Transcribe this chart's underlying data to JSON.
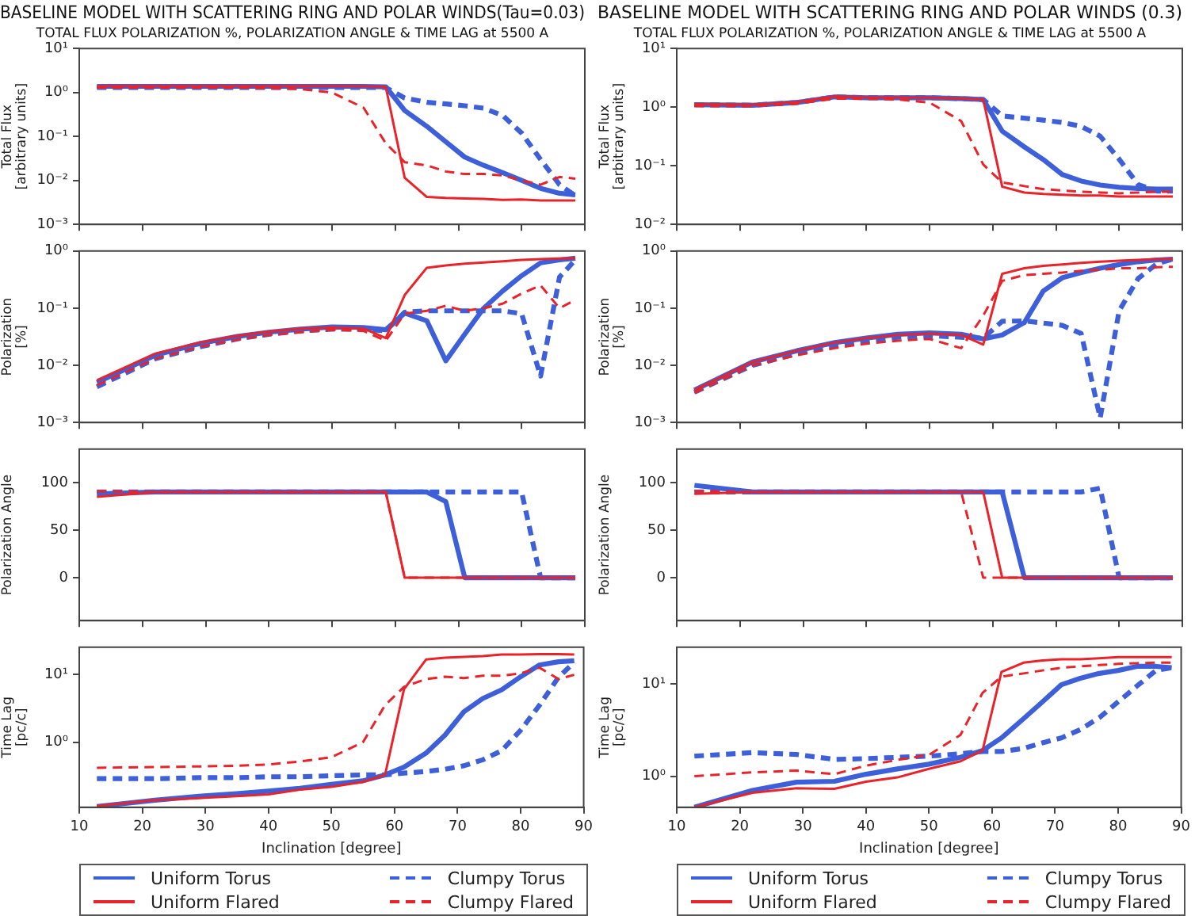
{
  "chart_data": [
    {
      "type": "line",
      "title": "BASELINE MODEL WITH SCATTERING RING AND POLAR WINDS(Tau=0.03)",
      "subtitle": "TOTAL FLUX POLARIZATION %, POLARIZATION ANGLE & TIME LAG at 5500 A",
      "ylabel": "Total Flux\n[arbitrary units]",
      "log": "y",
      "tick_labels": "y",
      "x": [
        12.8,
        22,
        29,
        35,
        40,
        45,
        50,
        55,
        58.5,
        61.5,
        65,
        68,
        71,
        74,
        77,
        80,
        83,
        86,
        88.5
      ],
      "xlim": [
        10,
        90
      ],
      "xticks": [
        10,
        20,
        30,
        40,
        50,
        60,
        70,
        80,
        90
      ],
      "ylim": [
        0.001,
        10
      ],
      "yticks": [
        {
          "value": 0.001,
          "label": "10⁻³"
        },
        {
          "value": 0.01,
          "label": "10⁻²"
        },
        {
          "value": 0.1,
          "label": "10⁻¹"
        },
        {
          "value": 1,
          "label": "10⁰"
        },
        {
          "value": 10,
          "label": "10¹"
        }
      ],
      "series": [
        {
          "color": "#3d5fd9",
          "line_style": "solid",
          "values": [
            1.38,
            1.38,
            1.38,
            1.38,
            1.38,
            1.38,
            1.38,
            1.38,
            1.35,
            0.39,
            0.17,
            0.076,
            0.034,
            0.022,
            0.015,
            0.01,
            0.0066,
            0.0051,
            0.0047
          ]
        },
        {
          "color": "#e8242a",
          "line_style": "solid",
          "values": [
            1.4,
            1.4,
            1.4,
            1.4,
            1.4,
            1.4,
            1.4,
            1.38,
            1.35,
            0.0115,
            0.0042,
            0.004,
            0.0039,
            0.0038,
            0.0036,
            0.0037,
            0.0035,
            0.0035,
            0.0035
          ]
        },
        {
          "color": "#3d5fd9",
          "line_style": "dashed",
          "values": [
            1.3,
            1.3,
            1.3,
            1.3,
            1.3,
            1.3,
            1.3,
            1.3,
            1.3,
            0.75,
            0.6,
            0.55,
            0.5,
            0.44,
            0.3,
            0.12,
            0.03,
            0.008,
            0.0045
          ]
        },
        {
          "color": "#e8242a",
          "line_style": "dashed",
          "values": [
            1.3,
            1.3,
            1.3,
            1.3,
            1.25,
            1.2,
            1.0,
            0.45,
            0.07,
            0.026,
            0.022,
            0.016,
            0.014,
            0.014,
            0.013,
            0.01,
            0.008,
            0.012,
            0.011
          ]
        }
      ]
    },
    {
      "type": "line",
      "ylabel": "Polarization\n[%]",
      "log": "y",
      "tick_labels": "y",
      "x": [
        12.8,
        22,
        29,
        35,
        40,
        45,
        50,
        55,
        58.5,
        61.5,
        65,
        68,
        71,
        74,
        77,
        80,
        83,
        86,
        88.5
      ],
      "xlim": [
        10,
        90
      ],
      "xticks": [
        10,
        20,
        30,
        40,
        50,
        60,
        70,
        80,
        90
      ],
      "ylim": [
        0.001,
        1
      ],
      "yticks": [
        {
          "value": 0.001,
          "label": "10⁻³"
        },
        {
          "value": 0.01,
          "label": "10⁻²"
        },
        {
          "value": 0.1,
          "label": "10⁻¹"
        },
        {
          "value": 1,
          "label": "10⁰"
        }
      ],
      "series": [
        {
          "color": "#3d5fd9",
          "line_style": "solid",
          "values": [
            0.005,
            0.015,
            0.024,
            0.032,
            0.038,
            0.043,
            0.047,
            0.046,
            0.042,
            0.082,
            0.06,
            0.012,
            0.035,
            0.1,
            0.2,
            0.37,
            0.62,
            0.7,
            0.75
          ]
        },
        {
          "color": "#e8242a",
          "line_style": "solid",
          "values": [
            0.0055,
            0.016,
            0.025,
            0.033,
            0.039,
            0.044,
            0.046,
            0.044,
            0.03,
            0.17,
            0.51,
            0.56,
            0.6,
            0.63,
            0.66,
            0.7,
            0.72,
            0.74,
            0.75
          ]
        },
        {
          "color": "#3d5fd9",
          "line_style": "dashed",
          "values": [
            0.0042,
            0.013,
            0.021,
            0.029,
            0.035,
            0.04,
            0.043,
            0.043,
            0.04,
            0.085,
            0.09,
            0.09,
            0.09,
            0.09,
            0.09,
            0.08,
            0.0065,
            0.35,
            0.7
          ]
        },
        {
          "color": "#e8242a",
          "line_style": "dashed",
          "values": [
            0.0045,
            0.013,
            0.021,
            0.028,
            0.034,
            0.038,
            0.042,
            0.04,
            0.027,
            0.08,
            0.09,
            0.11,
            0.09,
            0.1,
            0.12,
            0.18,
            0.25,
            0.1,
            0.14
          ]
        }
      ]
    },
    {
      "type": "line",
      "ylabel": "Polarization Angle",
      "tick_labels": "y",
      "x": [
        12.8,
        22,
        29,
        35,
        40,
        45,
        50,
        55,
        58.5,
        61.5,
        65,
        68,
        71,
        74,
        77,
        80,
        83,
        86,
        88.5
      ],
      "xlim": [
        10,
        90
      ],
      "xticks": [
        10,
        20,
        30,
        40,
        50,
        60,
        70,
        80,
        90
      ],
      "ylim": [
        -45,
        135
      ],
      "yticks": [
        0,
        50,
        100
      ],
      "series": [
        {
          "color": "#3d5fd9",
          "line_style": "solid",
          "values": [
            88,
            90,
            90,
            90,
            90,
            90,
            90,
            90,
            90,
            90,
            90,
            80,
            0,
            0,
            0,
            0,
            0,
            0,
            0
          ]
        },
        {
          "color": "#e8242a",
          "line_style": "solid",
          "values": [
            85,
            90,
            90,
            90,
            90,
            90,
            90,
            90,
            90,
            0,
            0,
            0,
            0,
            0,
            0,
            0,
            0,
            0,
            0
          ]
        },
        {
          "color": "#3d5fd9",
          "line_style": "dashed",
          "values": [
            90,
            90,
            90,
            90,
            90,
            90,
            90,
            90,
            90,
            90,
            90,
            90,
            90,
            90,
            90,
            90,
            0,
            0,
            0
          ]
        },
        {
          "color": "#e8242a",
          "line_style": "dashed",
          "values": [
            91,
            90,
            90,
            90,
            90,
            90,
            90,
            90,
            90,
            0,
            0,
            0,
            0,
            0,
            0,
            0,
            0,
            0,
            0
          ]
        }
      ]
    },
    {
      "type": "line",
      "ylabel": "Time Lag\n[pc/c]",
      "xlabel": "Inclination [degree]",
      "log": "y",
      "legend": "bottom",
      "x": [
        12.8,
        22,
        29,
        35,
        40,
        45,
        50,
        55,
        58.5,
        61.5,
        65,
        68,
        71,
        74,
        77,
        80,
        83,
        86,
        88.5
      ],
      "xlim": [
        10,
        90
      ],
      "xticks": [
        10,
        20,
        30,
        40,
        50,
        60,
        70,
        80,
        90
      ],
      "ylim": [
        0.11,
        25
      ],
      "yticks": [
        {
          "value": 1,
          "label": "10⁰"
        },
        {
          "value": 10,
          "label": "10¹"
        }
      ],
      "series": [
        {
          "name": "Uniform Torus",
          "color": "#3d5fd9",
          "line_style": "solid",
          "values": [
            0.113,
            0.14,
            0.16,
            0.175,
            0.19,
            0.21,
            0.24,
            0.27,
            0.33,
            0.43,
            0.69,
            1.27,
            2.8,
            4.4,
            5.9,
            9.2,
            13.7,
            15.3,
            15.8
          ]
        },
        {
          "name": "Uniform Flared",
          "color": "#e8242a",
          "line_style": "solid",
          "values": [
            0.115,
            0.14,
            0.15,
            0.16,
            0.17,
            0.2,
            0.22,
            0.26,
            0.33,
            6,
            16.5,
            17.5,
            18,
            18.5,
            19.5,
            19.5,
            19.8,
            19.8,
            19.5
          ]
        },
        {
          "name": "Clumpy Torus",
          "color": "#3d5fd9",
          "line_style": "dashed",
          "values": [
            0.29,
            0.29,
            0.3,
            0.3,
            0.31,
            0.31,
            0.32,
            0.33,
            0.33,
            0.35,
            0.37,
            0.4,
            0.45,
            0.55,
            0.75,
            1.5,
            3.5,
            9,
            15
          ]
        },
        {
          "name": "Clumpy Flared",
          "color": "#e8242a",
          "line_style": "dashed",
          "values": [
            0.42,
            0.43,
            0.44,
            0.45,
            0.47,
            0.52,
            0.6,
            1.0,
            3.5,
            6.5,
            8.5,
            9.2,
            8.8,
            9.5,
            9.5,
            10.3,
            12.5,
            8.5,
            9.8
          ]
        }
      ]
    },
    {
      "type": "line",
      "title": "BASELINE MODEL WITH SCATTERING RING AND POLAR WINDS (0.3)",
      "subtitle": "TOTAL FLUX POLARIZATION %, POLARIZATION ANGLE & TIME LAG at 5500 A",
      "ylabel": "Total Flux\n[arbitrary units]",
      "log": "y",
      "tick_labels": "y",
      "x": [
        12.8,
        22,
        29,
        35,
        40,
        45,
        50,
        55,
        58.5,
        61.5,
        65,
        68,
        71,
        74,
        77,
        80,
        83,
        86,
        88.5
      ],
      "xlim": [
        10,
        90
      ],
      "xticks": [
        10,
        20,
        30,
        40,
        50,
        60,
        70,
        80,
        90
      ],
      "ylim": [
        0.01,
        10
      ],
      "yticks": [
        {
          "value": 0.01,
          "label": "10⁻²"
        },
        {
          "value": 0.1,
          "label": "10⁻¹"
        },
        {
          "value": 1,
          "label": "10⁰"
        },
        {
          "value": 10,
          "label": "10¹"
        }
      ],
      "series": [
        {
          "color": "#3d5fd9",
          "line_style": "solid",
          "values": [
            1.1,
            1.08,
            1.2,
            1.5,
            1.45,
            1.45,
            1.45,
            1.4,
            1.35,
            0.39,
            0.21,
            0.128,
            0.071,
            0.055,
            0.047,
            0.043,
            0.041,
            0.04,
            0.04
          ]
        },
        {
          "color": "#e8242a",
          "line_style": "solid",
          "values": [
            1.12,
            1.1,
            1.22,
            1.52,
            1.47,
            1.46,
            1.45,
            1.4,
            1.35,
            0.044,
            0.035,
            0.033,
            0.032,
            0.031,
            0.031,
            0.03,
            0.03,
            0.03,
            0.03
          ]
        },
        {
          "color": "#3d5fd9",
          "line_style": "dashed",
          "values": [
            1.1,
            1.08,
            1.2,
            1.5,
            1.45,
            1.45,
            1.45,
            1.4,
            1.35,
            0.71,
            0.65,
            0.6,
            0.55,
            0.47,
            0.32,
            0.13,
            0.048,
            0.037,
            0.037
          ]
        },
        {
          "color": "#e8242a",
          "line_style": "dashed",
          "values": [
            1.05,
            1.05,
            1.15,
            1.4,
            1.4,
            1.35,
            1.2,
            0.58,
            0.105,
            0.052,
            0.045,
            0.04,
            0.038,
            0.036,
            0.035,
            0.034,
            0.035,
            0.036,
            0.036
          ]
        }
      ]
    },
    {
      "type": "line",
      "ylabel": "Polarization\n[%]",
      "log": "y",
      "tick_labels": "y",
      "x": [
        12.8,
        22,
        29,
        35,
        40,
        45,
        50,
        55,
        58.5,
        61.5,
        65,
        68,
        71,
        74,
        77,
        80,
        83,
        86,
        88.5
      ],
      "xlim": [
        10,
        90
      ],
      "xticks": [
        10,
        20,
        30,
        40,
        50,
        60,
        70,
        80,
        90
      ],
      "ylim": [
        0.001,
        1
      ],
      "yticks": [
        {
          "value": 0.001,
          "label": "10⁻³"
        },
        {
          "value": 0.01,
          "label": "10⁻²"
        },
        {
          "value": 0.1,
          "label": "10⁻¹"
        },
        {
          "value": 1,
          "label": "10⁰"
        }
      ],
      "series": [
        {
          "color": "#3d5fd9",
          "line_style": "solid",
          "values": [
            0.0037,
            0.0115,
            0.018,
            0.025,
            0.03,
            0.035,
            0.037,
            0.035,
            0.029,
            0.034,
            0.056,
            0.2,
            0.34,
            0.42,
            0.5,
            0.58,
            0.65,
            0.7,
            0.72
          ]
        },
        {
          "color": "#e8242a",
          "line_style": "solid",
          "values": [
            0.0037,
            0.0115,
            0.018,
            0.025,
            0.03,
            0.034,
            0.036,
            0.034,
            0.023,
            0.4,
            0.5,
            0.55,
            0.58,
            0.62,
            0.65,
            0.68,
            0.7,
            0.72,
            0.73
          ]
        },
        {
          "color": "#3d5fd9",
          "line_style": "dashed",
          "values": [
            0.0034,
            0.01,
            0.016,
            0.022,
            0.027,
            0.031,
            0.033,
            0.031,
            0.03,
            0.059,
            0.06,
            0.055,
            0.05,
            0.036,
            0.0012,
            0.09,
            0.33,
            0.6,
            0.72
          ]
        },
        {
          "color": "#e8242a",
          "line_style": "dashed",
          "values": [
            0.0033,
            0.01,
            0.015,
            0.02,
            0.024,
            0.027,
            0.029,
            0.02,
            0.074,
            0.3,
            0.38,
            0.4,
            0.42,
            0.45,
            0.47,
            0.5,
            0.5,
            0.52,
            0.53
          ]
        }
      ]
    },
    {
      "type": "line",
      "ylabel": "Polarization Angle",
      "tick_labels": "y",
      "x": [
        12.8,
        22,
        29,
        35,
        40,
        45,
        50,
        55,
        58.5,
        61.5,
        65,
        68,
        71,
        74,
        77,
        80,
        83,
        86,
        88.5
      ],
      "xlim": [
        10,
        90
      ],
      "xticks": [
        10,
        20,
        30,
        40,
        50,
        60,
        70,
        80,
        90
      ],
      "ylim": [
        -45,
        135
      ],
      "yticks": [
        0,
        50,
        100
      ],
      "series": [
        {
          "color": "#3d5fd9",
          "line_style": "solid",
          "values": [
            97,
            90,
            90,
            90,
            90,
            90,
            90,
            90,
            90,
            90,
            0,
            0,
            0,
            0,
            0,
            0,
            0,
            0,
            0
          ]
        },
        {
          "color": "#e8242a",
          "line_style": "solid",
          "values": [
            88,
            90,
            90,
            90,
            90,
            90,
            90,
            90,
            90,
            0,
            0,
            0,
            0,
            0,
            0,
            0,
            0,
            0,
            0
          ]
        },
        {
          "color": "#3d5fd9",
          "line_style": "dashed",
          "values": [
            90,
            90,
            90,
            90,
            90,
            90,
            90,
            90,
            90,
            90,
            90,
            90,
            90,
            90,
            94,
            0,
            0,
            0,
            0
          ]
        },
        {
          "color": "#e8242a",
          "line_style": "dashed",
          "values": [
            91,
            90,
            90,
            90,
            90,
            90,
            90,
            90,
            0,
            0,
            0,
            0,
            0,
            0,
            0,
            0,
            0,
            0,
            0
          ]
        }
      ]
    },
    {
      "type": "line",
      "ylabel": "Time Lag\n[pc/c]",
      "xlabel": "Inclination [degree]",
      "log": "y",
      "legend": "bottom",
      "x": [
        12.8,
        22,
        29,
        35,
        40,
        45,
        50,
        55,
        58.5,
        61.5,
        65,
        68,
        71,
        74,
        77,
        80,
        83,
        86,
        88.5
      ],
      "xlim": [
        10,
        90
      ],
      "xticks": [
        10,
        20,
        30,
        40,
        50,
        60,
        70,
        80,
        90
      ],
      "ylim": [
        0.46,
        25
      ],
      "yticks": [
        {
          "value": 1,
          "label": "10⁰"
        },
        {
          "value": 10,
          "label": "10¹"
        }
      ],
      "series": [
        {
          "name": "Uniform Torus",
          "color": "#3d5fd9",
          "line_style": "solid",
          "values": [
            0.46,
            0.7,
            0.86,
            0.88,
            1.05,
            1.2,
            1.35,
            1.6,
            1.9,
            2.6,
            4.2,
            6.4,
            9.8,
            11.5,
            13,
            14,
            15.5,
            15.5,
            15
          ]
        },
        {
          "name": "Uniform Flared",
          "color": "#e8242a",
          "line_style": "solid",
          "values": [
            0.46,
            0.66,
            0.74,
            0.73,
            0.87,
            0.97,
            1.2,
            1.45,
            1.9,
            13.5,
            17,
            18,
            18.5,
            18.5,
            19,
            19.5,
            19.5,
            19.5,
            19.5
          ]
        },
        {
          "name": "Clumpy Torus",
          "color": "#3d5fd9",
          "line_style": "dashed",
          "values": [
            1.65,
            1.8,
            1.72,
            1.52,
            1.55,
            1.6,
            1.65,
            1.75,
            1.85,
            1.85,
            2.0,
            2.3,
            2.6,
            3.2,
            4.3,
            6.4,
            9.5,
            14,
            15
          ]
        },
        {
          "name": "Clumpy Flared",
          "color": "#e8242a",
          "line_style": "dashed",
          "values": [
            1.0,
            1.1,
            1.15,
            1.05,
            1.3,
            1.5,
            1.7,
            2.8,
            8,
            12,
            13,
            14,
            15,
            15.5,
            16,
            16.5,
            16.8,
            17,
            17
          ]
        }
      ]
    }
  ]
}
